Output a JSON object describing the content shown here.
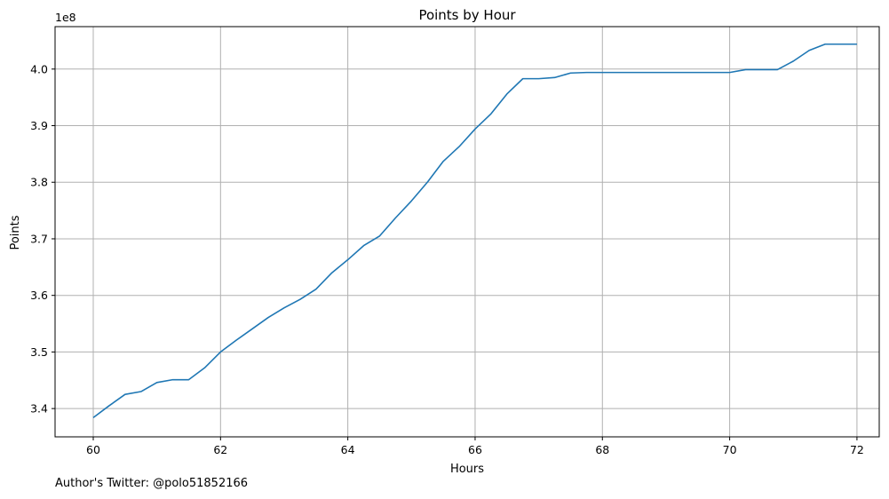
{
  "chart_data": {
    "type": "line",
    "title": "Points by Hour",
    "xlabel": "Hours",
    "ylabel": "Points",
    "y_offset_label": "1e8",
    "xlim": [
      59.4,
      72.35
    ],
    "ylim": [
      3.35,
      4.075
    ],
    "x_ticks": [
      60,
      62,
      64,
      66,
      68,
      70,
      72
    ],
    "y_ticks": [
      3.4,
      3.5,
      3.6,
      3.7,
      3.8,
      3.9,
      4.0
    ],
    "y_tick_labels": [
      "3.4",
      "3.5",
      "3.6",
      "3.7",
      "3.8",
      "3.9",
      "4.0"
    ],
    "grid": true,
    "series": [
      {
        "color": "#1f77b4",
        "x": [
          60,
          60.25,
          60.5,
          60.75,
          61,
          61.25,
          61.5,
          61.75,
          62,
          62.25,
          62.5,
          62.75,
          63,
          63.25,
          63.5,
          63.75,
          64,
          64.25,
          64.5,
          64.75,
          65,
          65.25,
          65.5,
          65.75,
          66,
          66.25,
          66.5,
          66.75,
          67,
          67.25,
          67.5,
          67.75,
          68,
          68.25,
          68.5,
          68.75,
          69,
          69.25,
          69.5,
          69.75,
          70,
          70.25,
          70.5,
          70.75,
          71,
          71.25,
          71.5,
          71.75,
          72
        ],
        "y": [
          3.384,
          3.405,
          3.425,
          3.43,
          3.446,
          3.451,
          3.451,
          3.472,
          3.5,
          3.521,
          3.541,
          3.561,
          3.578,
          3.593,
          3.611,
          3.64,
          3.663,
          3.688,
          3.705,
          3.737,
          3.767,
          3.8,
          3.837,
          3.863,
          3.894,
          3.921,
          3.956,
          3.983,
          3.983,
          3.985,
          3.993,
          3.994,
          3.994,
          3.994,
          3.994,
          3.994,
          3.994,
          3.994,
          3.994,
          3.994,
          3.994,
          3.999,
          3.999,
          3.999,
          4.014,
          4.033,
          4.044,
          4.044,
          4.044
        ]
      }
    ]
  },
  "footer_text": "Author's Twitter: @polo51852166"
}
